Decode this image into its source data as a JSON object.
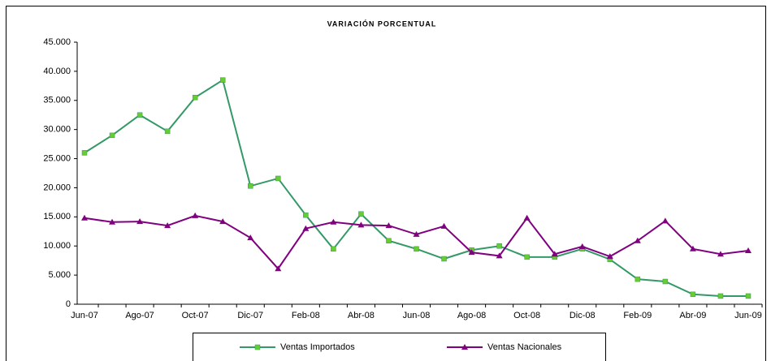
{
  "chart_data": {
    "type": "line",
    "title": "VARIACIÓN PORCENTUAL",
    "categories": [
      "Jun-07",
      null,
      "Ago-07",
      null,
      "Oct-07",
      null,
      "Dic-07",
      null,
      "Feb-08",
      null,
      "Abr-08",
      null,
      "Jun-08",
      null,
      "Ago-08",
      null,
      "Oct-08",
      null,
      "Dic-08",
      null,
      "Feb-09",
      null,
      "Abr-09",
      null,
      "Jun-09"
    ],
    "series": [
      {
        "name": "Ventas Importados",
        "color": "#339966",
        "marker_color": "#66cc33",
        "marker": "square",
        "values": [
          26000,
          29000,
          32500,
          29700,
          35500,
          38500,
          20300,
          21600,
          15300,
          9500,
          15500,
          10900,
          9500,
          7800,
          9300,
          10000,
          8100,
          8100,
          9500,
          7700,
          4300,
          3900,
          1700,
          1400,
          1400
        ]
      },
      {
        "name": "Ventas Nacionales",
        "color": "#800080",
        "marker_color": "#800080",
        "marker": "triangle",
        "values": [
          14800,
          14100,
          14200,
          13500,
          15200,
          14200,
          11400,
          6100,
          13000,
          14100,
          13600,
          13500,
          12000,
          13400,
          8900,
          8300,
          14800,
          8600,
          9900,
          8200,
          10900,
          14300,
          9500,
          8600,
          9200
        ]
      }
    ],
    "ylim": [
      0,
      45000
    ],
    "yticks": [
      0,
      {
        "value": 5000,
        "label": "5.000"
      },
      {
        "value": 10000,
        "label": "10.000"
      },
      {
        "value": 15000,
        "label": "15.000"
      },
      {
        "value": 20000,
        "label": "20.000"
      },
      {
        "value": 25000,
        "label": "25.000"
      },
      {
        "value": 30000,
        "label": "30.000"
      },
      {
        "value": 35000,
        "label": "35.000"
      },
      {
        "value": 40000,
        "label": "40.000"
      },
      {
        "value": 45000,
        "label": "45.000"
      }
    ],
    "grid": false,
    "legend": "bottom"
  }
}
